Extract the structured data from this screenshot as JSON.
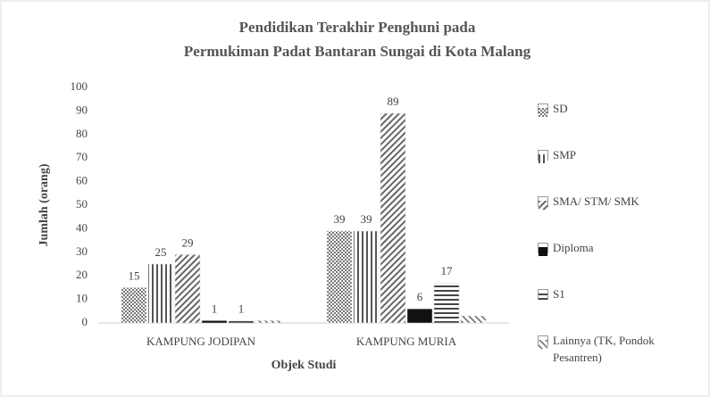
{
  "chart_data": {
    "type": "bar",
    "title": [
      "Pendidikan Terakhir Penghuni pada",
      "Permukiman Padat Bantaran Sungai di Kota Malang"
    ],
    "x_label": "Objek Studi",
    "y_label": "Jumlah (orang)",
    "categories": [
      "KAMPUNG JODIPAN",
      "KAMPUNG MURIA"
    ],
    "series": [
      {
        "name": "SD",
        "color": "#777777",
        "values": [
          15,
          39
        ]
      },
      {
        "name": "SMP",
        "color": "#555555",
        "values": [
          25,
          39
        ]
      },
      {
        "name": "SMA/ STM/ SMK",
        "color": "#666666",
        "values": [
          29,
          89
        ]
      },
      {
        "name": "Diploma",
        "color": "#111111",
        "values": [
          1,
          6
        ]
      },
      {
        "name": "S1",
        "color": "#444444",
        "values": [
          1,
          17
        ]
      },
      {
        "name": "Lainnya (TK, Pondok Pesantren)",
        "color": "#666666",
        "values": [
          1,
          3
        ],
        "value_labels": [
          null,
          null
        ]
      }
    ],
    "ylim": [
      0,
      100
    ],
    "yticks": [
      0,
      10,
      20,
      30,
      40,
      50,
      60,
      70,
      80,
      90,
      100
    ],
    "legend": "right"
  }
}
